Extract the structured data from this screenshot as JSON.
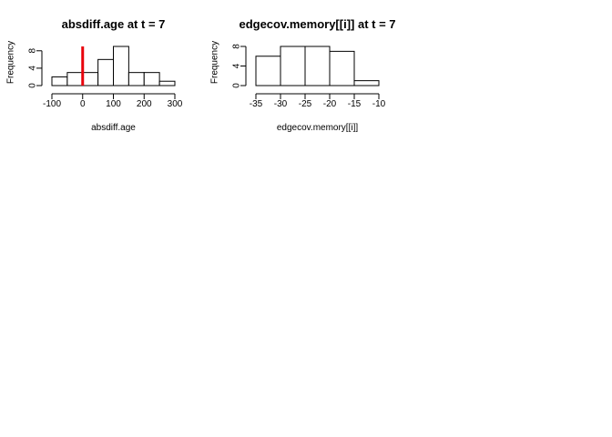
{
  "chart_data": [
    {
      "type": "bar",
      "title": "absdiff.age at t = 7",
      "xlabel": "absdiff.age",
      "ylabel": "Frequency",
      "bins": [
        {
          "x0": -100,
          "x1": -50,
          "count": 2
        },
        {
          "x0": -50,
          "x1": 0,
          "count": 3
        },
        {
          "x0": 0,
          "x1": 50,
          "count": 3
        },
        {
          "x0": 50,
          "x1": 100,
          "count": 6
        },
        {
          "x0": 100,
          "x1": 150,
          "count": 9
        },
        {
          "x0": 150,
          "x1": 200,
          "count": 3
        },
        {
          "x0": 200,
          "x1": 250,
          "count": 3
        },
        {
          "x0": 250,
          "x1": 300,
          "count": 1
        }
      ],
      "xlim": [
        -100,
        300
      ],
      "ylim": [
        0,
        9
      ],
      "x_ticks": [
        -100,
        0,
        100,
        200,
        300
      ],
      "y_ticks": [
        0,
        4,
        8
      ],
      "reference_line": {
        "x": 0,
        "color": "#e8000b"
      },
      "grid": false
    },
    {
      "type": "bar",
      "title": "edgecov.memory[[i]] at t = 7",
      "xlabel": "edgecov.memory[[i]]",
      "ylabel": "Frequency",
      "bins": [
        {
          "x0": -35,
          "x1": -30,
          "count": 6
        },
        {
          "x0": -30,
          "x1": -25,
          "count": 8
        },
        {
          "x0": -25,
          "x1": -20,
          "count": 8
        },
        {
          "x0": -20,
          "x1": -15,
          "count": 7
        },
        {
          "x0": -15,
          "x1": -10,
          "count": 1
        }
      ],
      "xlim": [
        -35,
        -10
      ],
      "ylim": [
        0,
        8
      ],
      "x_ticks": [
        -35,
        -30,
        -25,
        -20,
        -15,
        -10
      ],
      "y_ticks": [
        0,
        4,
        8
      ],
      "grid": false
    }
  ]
}
